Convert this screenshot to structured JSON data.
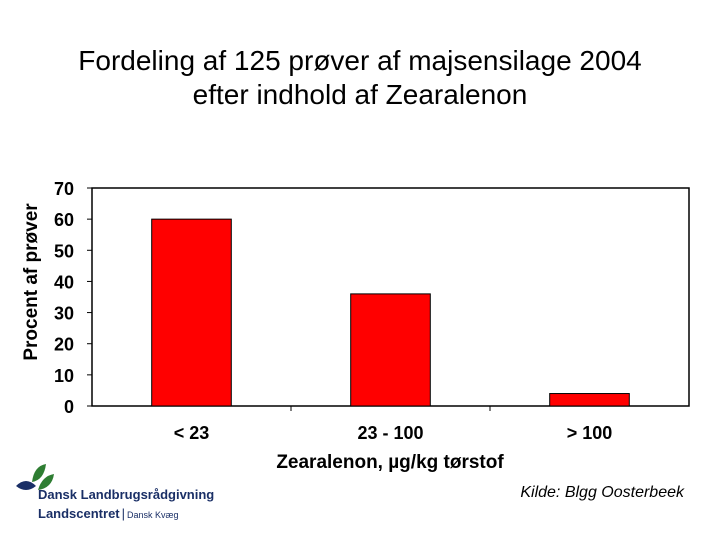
{
  "title_lines": [
    "Fordeling af 125 prøver af majsensilage 2004",
    "efter indhold af Zearalenon"
  ],
  "chart_data": {
    "type": "bar",
    "title": "Fordeling af 125 prøver af majsensilage 2004 efter indhold af Zearalenon",
    "categories": [
      "< 23",
      "23 - 100",
      "> 100"
    ],
    "values": [
      60,
      36,
      4
    ],
    "xlabel": "Zearalenon, µg/kg tørstof",
    "ylabel": "Procent af prøver",
    "ylim": [
      0,
      70
    ],
    "yticks": [
      0,
      10,
      20,
      30,
      40,
      50,
      60,
      70
    ],
    "grid": false,
    "bar_color": "#ff0000",
    "bar_edge_color": "#000000"
  },
  "logo": {
    "org_name": "Dansk Landbrugsrådgivning",
    "unit_main": "Landscentret",
    "separator": "|",
    "unit_sub": "Dansk Kvæg",
    "brand_color": "#1a2f66",
    "leaf_color": "#2e7d32"
  },
  "source": "Kilde: Blgg Oosterbeek"
}
